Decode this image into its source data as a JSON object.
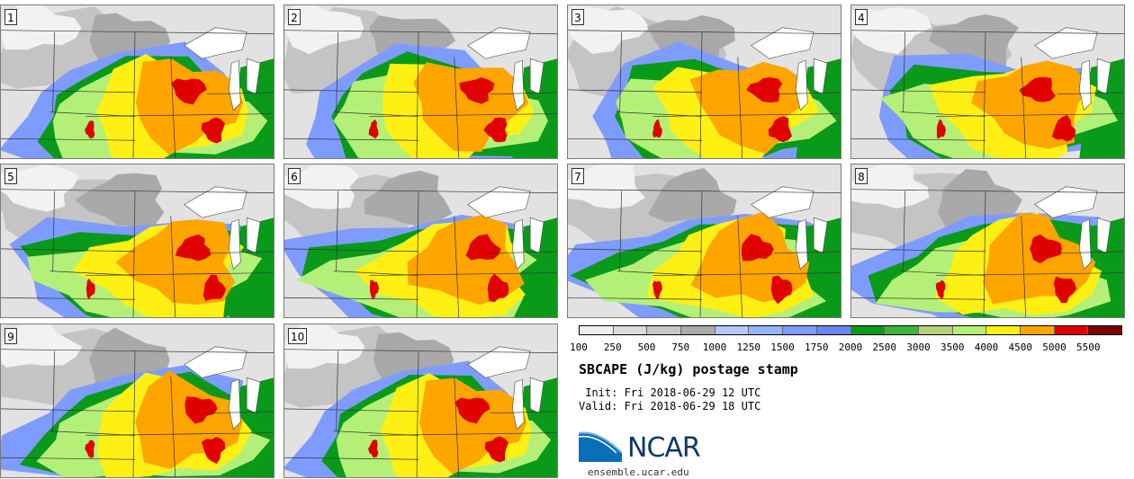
{
  "panels": [
    "1",
    "2",
    "3",
    "4",
    "5",
    "6",
    "7",
    "8",
    "9",
    "10"
  ],
  "colorbar": {
    "ticks": [
      "100",
      "250",
      "500",
      "750",
      "1000",
      "1250",
      "1500",
      "1750",
      "2000",
      "2500",
      "3000",
      "3500",
      "4000",
      "4500",
      "5000",
      "5500"
    ],
    "colors": [
      "#f0f0f0",
      "#dcdcdc",
      "#c8c8c8",
      "#aaaaaa",
      "#b4c8ff",
      "#96b4ff",
      "#7e9cff",
      "#6a86f0",
      "#0a9a1a",
      "#3cb43c",
      "#b4d278",
      "#b4f078",
      "#fff014",
      "#ffa500",
      "#e10000",
      "#7a0000"
    ]
  },
  "title": "SBCAPE (J/kg) postage stamp",
  "init": " Init: Fri 2018-06-29 12 UTC",
  "valid": "Valid: Fri 2018-06-29 18 UTC",
  "logo_text": "NCAR",
  "site": "ensemble.ucar.edu"
}
